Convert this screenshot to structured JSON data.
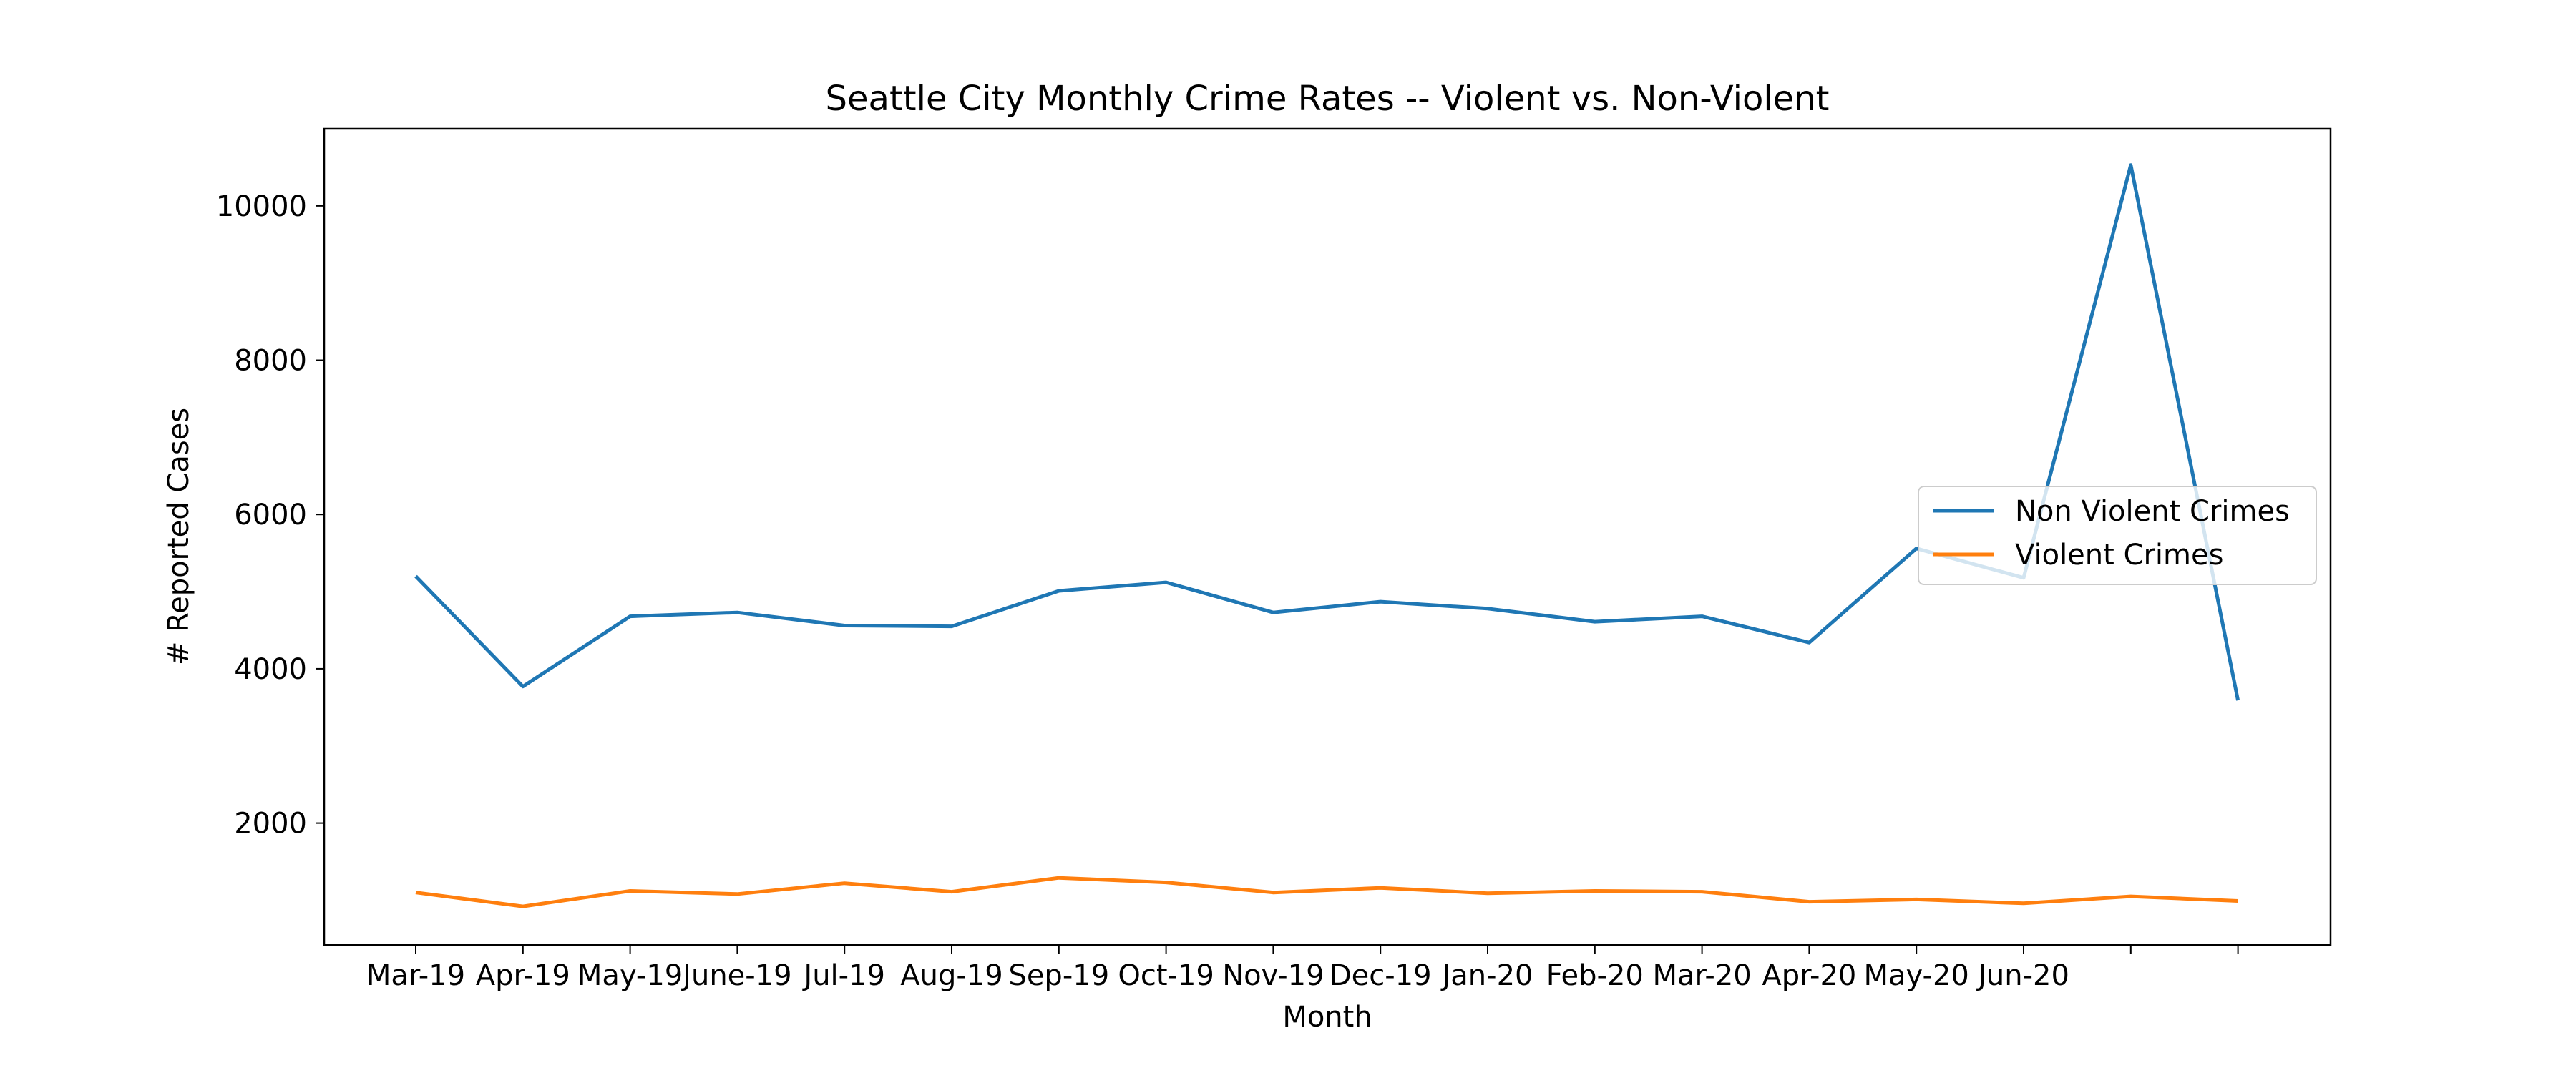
{
  "chart_data": {
    "type": "line",
    "title": "Seattle City Monthly Crime Rates -- Violent vs. Non-Violent",
    "xlabel": "Month",
    "ylabel": "# Reported Cases",
    "categories": [
      "Mar-19",
      "Apr-19",
      "May-19",
      "June-19",
      "Jul-19",
      "Aug-19",
      "Sep-19",
      "Oct-19",
      "Nov-19",
      "Dec-19",
      "Jan-20",
      "Feb-20",
      "Mar-20",
      "Apr-20",
      "May-20",
      "Jun-20",
      "",
      ""
    ],
    "yticks": [
      2000,
      4000,
      6000,
      8000,
      10000
    ],
    "ylim": [
      420,
      11000
    ],
    "grid": false,
    "legend_position": "center-right",
    "series": [
      {
        "name": "Non Violent Crimes",
        "color": "#1f77b4",
        "values": [
          5200,
          3770,
          4680,
          4730,
          4560,
          4550,
          5010,
          5120,
          4730,
          4870,
          4780,
          4610,
          4680,
          4340,
          5560,
          5180,
          10530,
          3590
        ]
      },
      {
        "name": "Violent Crimes",
        "color": "#ff7f0e",
        "values": [
          1100,
          920,
          1120,
          1080,
          1220,
          1110,
          1290,
          1230,
          1100,
          1160,
          1090,
          1120,
          1110,
          980,
          1010,
          960,
          1050,
          990
        ]
      }
    ]
  }
}
